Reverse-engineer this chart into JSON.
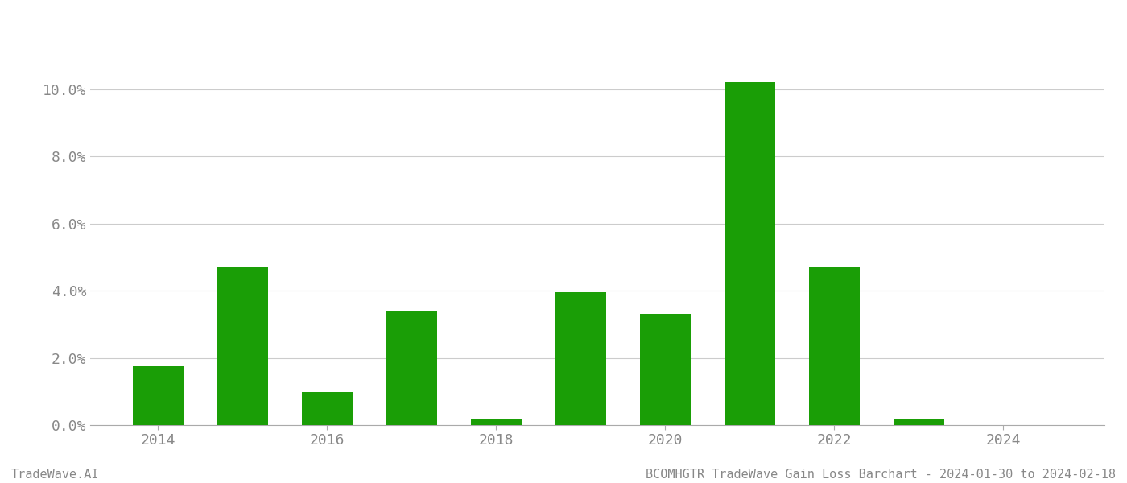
{
  "years": [
    2014,
    2015,
    2016,
    2017,
    2018,
    2019,
    2020,
    2021,
    2022,
    2023,
    2024
  ],
  "values": [
    0.0175,
    0.047,
    0.0098,
    0.034,
    0.002,
    0.0395,
    0.033,
    0.102,
    0.047,
    0.002,
    0.0
  ],
  "bar_color": "#1a9e06",
  "background_color": "#ffffff",
  "grid_color": "#cccccc",
  "axis_label_color": "#888888",
  "footer_left": "TradeWave.AI",
  "footer_right": "BCOMHGTR TradeWave Gain Loss Barchart - 2024-01-30 to 2024-02-18",
  "ytick_labels": [
    "0.0%",
    "2.0%",
    "4.0%",
    "6.0%",
    "8.0%",
    "10.0%"
  ],
  "ytick_values": [
    0.0,
    0.02,
    0.04,
    0.06,
    0.08,
    0.1
  ],
  "ylim": [
    0,
    0.115
  ],
  "xlim": [
    2013.2,
    2025.2
  ],
  "xticks": [
    2014,
    2016,
    2018,
    2020,
    2022,
    2024
  ],
  "bar_width": 0.6,
  "font_size_ticks": 13,
  "font_size_footer": 11
}
